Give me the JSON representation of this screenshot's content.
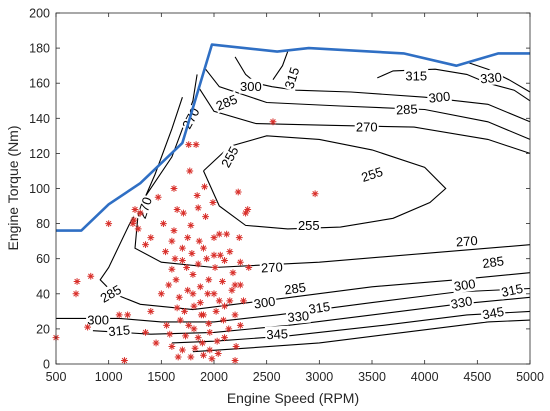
{
  "chart_data": {
    "type": "contour",
    "title": "",
    "xlabel": "Engine Speed (RPM)",
    "ylabel": "Engine Torque (Nm)",
    "xlim": [
      500,
      5000
    ],
    "ylim": [
      0,
      200
    ],
    "xticks": [
      "500",
      "1000",
      "1500",
      "2000",
      "2500",
      "3000",
      "3500",
      "4000",
      "4500",
      "5000"
    ],
    "yticks": [
      "0",
      "20",
      "40",
      "60",
      "80",
      "100",
      "120",
      "140",
      "160",
      "180",
      "200"
    ],
    "grid": false,
    "colors": {
      "max_torque_line": "#2f6fc4",
      "contour": "#000000",
      "operating_points": "#d9302b",
      "axis": "#262626"
    },
    "max_torque_curve": {
      "x": [
        500,
        740,
        1000,
        1300,
        1700,
        1980,
        2600,
        2900,
        3800,
        4300,
        4700,
        5000
      ],
      "y": [
        76,
        76,
        91,
        103,
        126,
        182,
        178,
        180,
        177,
        170,
        177,
        177
      ]
    },
    "contours": [
      {
        "level": "255",
        "points": [
          [
            1900,
            110
          ],
          [
            2050,
            90
          ],
          [
            2300,
            79
          ],
          [
            2700,
            77
          ],
          [
            3200,
            78
          ],
          [
            3700,
            83
          ],
          [
            4050,
            92
          ],
          [
            4200,
            100
          ],
          [
            4000,
            112
          ],
          [
            3500,
            122
          ],
          [
            3000,
            128
          ],
          [
            2500,
            130
          ],
          [
            2150,
            124
          ],
          [
            1900,
            110
          ]
        ]
      },
      {
        "level": "270",
        "points": [
          [
            1700,
            152
          ],
          [
            1600,
            134
          ],
          [
            1440,
            108
          ],
          [
            1280,
            86
          ],
          [
            1250,
            66
          ],
          [
            1500,
            58
          ],
          [
            2000,
            55
          ],
          [
            3000,
            58
          ],
          [
            4000,
            63
          ],
          [
            5000,
            68
          ]
        ]
      },
      {
        "level": "285",
        "points": [
          [
            1840,
            165
          ],
          [
            1800,
            150
          ],
          [
            1600,
            118
          ],
          [
            1320,
            93
          ],
          [
            1200,
            80
          ],
          [
            1000,
            55
          ],
          [
            920,
            48
          ],
          [
            1050,
            40
          ],
          [
            1300,
            34
          ],
          [
            1800,
            31
          ],
          [
            2600,
            37
          ],
          [
            3500,
            44
          ],
          [
            4300,
            48
          ],
          [
            5000,
            52
          ]
        ]
      },
      {
        "level": "300",
        "points": [
          [
            500,
            26
          ],
          [
            1100,
            26
          ],
          [
            1500,
            24
          ],
          [
            2000,
            24
          ],
          [
            2600,
            28
          ],
          [
            3500,
            35
          ],
          [
            4300,
            41
          ],
          [
            5000,
            43
          ]
        ]
      },
      {
        "level": "315",
        "points": [
          [
            850,
            19
          ],
          [
            1400,
            17
          ],
          [
            2000,
            18
          ],
          [
            2700,
            22
          ],
          [
            3500,
            28
          ],
          [
            4300,
            34
          ],
          [
            5000,
            38
          ]
        ]
      },
      {
        "level": "330",
        "points": [
          [
            1600,
            12
          ],
          [
            2000,
            13
          ],
          [
            2700,
            16
          ],
          [
            3600,
            22
          ],
          [
            4400,
            28
          ],
          [
            5000,
            30
          ]
        ]
      },
      {
        "level": "345",
        "points": [
          [
            1800,
            7
          ],
          [
            2300,
            9
          ],
          [
            3000,
            12
          ],
          [
            3800,
            18
          ],
          [
            4600,
            24
          ],
          [
            5000,
            25
          ]
        ]
      },
      {
        "level": "300",
        "points": [
          [
            2200,
            175
          ],
          [
            2300,
            165
          ],
          [
            2400,
            160
          ],
          [
            2550,
            158
          ],
          [
            2780,
            156
          ],
          [
            3300,
            155
          ],
          [
            4000,
            152
          ],
          [
            4600,
            148
          ],
          [
            5000,
            138
          ]
        ]
      },
      {
        "level": "285",
        "points": [
          [
            1920,
            168
          ],
          [
            2050,
            158
          ],
          [
            2500,
            149
          ],
          [
            3200,
            147
          ],
          [
            4000,
            145
          ],
          [
            4600,
            138
          ],
          [
            5000,
            128
          ]
        ]
      },
      {
        "level": "270",
        "points": [
          [
            1850,
            158
          ],
          [
            2000,
            144
          ],
          [
            2400,
            137
          ],
          [
            3100,
            136
          ],
          [
            3900,
            135
          ],
          [
            4600,
            128
          ],
          [
            5000,
            120
          ]
        ]
      },
      {
        "level": "315",
        "points": [
          [
            2700,
            178
          ],
          [
            2650,
            170
          ],
          [
            2560,
            162
          ]
        ]
      },
      {
        "level": "315",
        "points": [
          [
            3550,
            163
          ],
          [
            3700,
            167
          ],
          [
            4100,
            168
          ],
          [
            4400,
            165
          ],
          [
            4600,
            160
          ],
          [
            4850,
            156
          ],
          [
            5000,
            150
          ]
        ]
      },
      {
        "level": "330",
        "points": [
          [
            4400,
            172
          ],
          [
            4600,
            168
          ],
          [
            4800,
            162
          ],
          [
            5000,
            155
          ]
        ]
      }
    ],
    "contour_labels": [
      {
        "text": "255",
        "x": 2150,
        "y": 118,
        "angle": -62
      },
      {
        "text": "255",
        "x": 3500,
        "y": 108,
        "angle": -18
      },
      {
        "text": "255",
        "x": 2900,
        "y": 79,
        "angle": 0
      },
      {
        "text": "270",
        "x": 1340,
        "y": 89,
        "angle": -72
      },
      {
        "text": "270",
        "x": 1780,
        "y": 140,
        "angle": -62
      },
      {
        "text": "270",
        "x": 2550,
        "y": 55,
        "angle": -3
      },
      {
        "text": "270",
        "x": 4400,
        "y": 70,
        "angle": -4
      },
      {
        "text": "270",
        "x": 3450,
        "y": 135,
        "angle": 0
      },
      {
        "text": "285",
        "x": 1020,
        "y": 40,
        "angle": -30
      },
      {
        "text": "285",
        "x": 2770,
        "y": 43,
        "angle": -8
      },
      {
        "text": "285",
        "x": 4650,
        "y": 58,
        "angle": -8
      },
      {
        "text": "285",
        "x": 3830,
        "y": 145,
        "angle": -3
      },
      {
        "text": "285",
        "x": 2120,
        "y": 149,
        "angle": -22
      },
      {
        "text": "300",
        "x": 900,
        "y": 25,
        "angle": 0
      },
      {
        "text": "300",
        "x": 2480,
        "y": 35,
        "angle": -8
      },
      {
        "text": "300",
        "x": 4380,
        "y": 45,
        "angle": -8
      },
      {
        "text": "300",
        "x": 4140,
        "y": 152,
        "angle": -6
      },
      {
        "text": "300",
        "x": 2350,
        "y": 158,
        "angle": 0
      },
      {
        "text": "315",
        "x": 1100,
        "y": 19,
        "angle": -5
      },
      {
        "text": "315",
        "x": 3000,
        "y": 32,
        "angle": -8
      },
      {
        "text": "315",
        "x": 4830,
        "y": 42,
        "angle": -12
      },
      {
        "text": "315",
        "x": 2740,
        "y": 163,
        "angle": -72
      },
      {
        "text": "315",
        "x": 3920,
        "y": 164,
        "angle": 0
      },
      {
        "text": "330",
        "x": 2800,
        "y": 27,
        "angle": -5
      },
      {
        "text": "330",
        "x": 4350,
        "y": 35,
        "angle": -10
      },
      {
        "text": "330",
        "x": 4630,
        "y": 163,
        "angle": -5
      },
      {
        "text": "345",
        "x": 2600,
        "y": 17,
        "angle": -3
      },
      {
        "text": "345",
        "x": 4650,
        "y": 29,
        "angle": -10
      }
    ],
    "operating_points": [
      [
        500,
        15
      ],
      [
        700,
        47
      ],
      [
        690,
        40
      ],
      [
        800,
        21
      ],
      [
        830,
        50
      ],
      [
        1000,
        80
      ],
      [
        1100,
        28
      ],
      [
        1150,
        2
      ],
      [
        1180,
        28
      ],
      [
        1230,
        80
      ],
      [
        1250,
        88
      ],
      [
        1240,
        82
      ],
      [
        1280,
        77
      ],
      [
        1300,
        86
      ],
      [
        1350,
        68
      ],
      [
        1400,
        72
      ],
      [
        1470,
        95
      ],
      [
        1500,
        40
      ],
      [
        1520,
        80
      ],
      [
        1540,
        64
      ],
      [
        1570,
        45
      ],
      [
        1600,
        70
      ],
      [
        1620,
        100
      ],
      [
        1620,
        76
      ],
      [
        1630,
        60
      ],
      [
        1640,
        48
      ],
      [
        1650,
        32
      ],
      [
        1670,
        38
      ],
      [
        1680,
        25
      ],
      [
        1700,
        66
      ],
      [
        1710,
        86
      ],
      [
        1730,
        16
      ],
      [
        1740,
        55
      ],
      [
        1750,
        42
      ],
      [
        1760,
        125
      ],
      [
        1770,
        110
      ],
      [
        1780,
        79
      ],
      [
        1790,
        63
      ],
      [
        1800,
        51
      ],
      [
        1810,
        33
      ],
      [
        1810,
        20
      ],
      [
        1820,
        9
      ],
      [
        1830,
        125
      ],
      [
        1840,
        96
      ],
      [
        1850,
        89
      ],
      [
        1860,
        70
      ],
      [
        1870,
        44
      ],
      [
        1880,
        28
      ],
      [
        1890,
        12
      ],
      [
        1900,
        5
      ],
      [
        1910,
        101
      ],
      [
        1920,
        84
      ],
      [
        1930,
        60
      ],
      [
        1940,
        40
      ],
      [
        1950,
        23
      ],
      [
        1960,
        8
      ],
      [
        1980,
        3
      ],
      [
        1990,
        92
      ],
      [
        2000,
        72
      ],
      [
        2010,
        55
      ],
      [
        2020,
        30
      ],
      [
        2030,
        13
      ],
      [
        2040,
        6
      ],
      [
        2060,
        62
      ],
      [
        2080,
        47
      ],
      [
        2090,
        25
      ],
      [
        2100,
        15
      ],
      [
        2120,
        74
      ],
      [
        2150,
        36
      ],
      [
        2180,
        52
      ],
      [
        2200,
        28
      ],
      [
        2210,
        10
      ],
      [
        2230,
        98
      ],
      [
        2240,
        72
      ],
      [
        2250,
        45
      ],
      [
        2280,
        36
      ],
      [
        2300,
        86
      ],
      [
        2320,
        88
      ],
      [
        2330,
        55
      ],
      [
        2560,
        138
      ],
      [
        2960,
        97
      ],
      [
        1550,
        22
      ],
      [
        1580,
        17
      ],
      [
        1600,
        10
      ],
      [
        1660,
        4
      ],
      [
        1700,
        8
      ],
      [
        1720,
        30
      ],
      [
        1760,
        22
      ],
      [
        1780,
        4
      ],
      [
        1850,
        15
      ],
      [
        1870,
        35
      ],
      [
        1900,
        28
      ],
      [
        1960,
        18
      ],
      [
        2000,
        40
      ],
      [
        2050,
        36
      ],
      [
        2100,
        33
      ],
      [
        2140,
        20
      ],
      [
        2170,
        42
      ],
      [
        2200,
        2
      ],
      [
        2250,
        22
      ],
      [
        1450,
        12
      ],
      [
        1400,
        30
      ],
      [
        1350,
        18
      ],
      [
        1650,
        88
      ],
      [
        1600,
        54
      ],
      [
        1700,
        59
      ],
      [
        1750,
        72
      ],
      [
        1800,
        40
      ],
      [
        1850,
        57
      ],
      [
        1900,
        66
      ],
      [
        1950,
        48
      ],
      [
        2000,
        62
      ],
      [
        2050,
        74
      ],
      [
        2100,
        59
      ],
      [
        2150,
        64
      ],
      [
        2200,
        45
      ],
      [
        2250,
        58
      ]
    ]
  }
}
